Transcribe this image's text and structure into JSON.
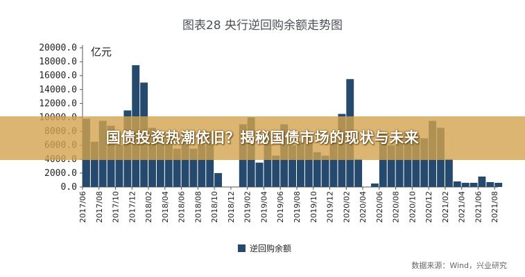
{
  "figure_title": "图表28  央行逆回购余额走势图",
  "banner_text": "国债投资热潮依旧？揭秘国债市场的现状与未来",
  "source_note": "数据来源：Wind，兴业研究",
  "colors": {
    "series": "#264a6e",
    "banner": "#d2a24e"
  },
  "chart_data": {
    "type": "bar",
    "title": "图表28  央行逆回购余额走势图",
    "ylabel": "亿元",
    "xlabel": "",
    "ylim": [
      0,
      20000
    ],
    "yticks": [
      "20000.0",
      "18000.0",
      "16000.0",
      "14000.0",
      "12000.0",
      "10000.0",
      "8000.0",
      "6000.0",
      "4000.0",
      "2000.0",
      "0.0"
    ],
    "xticks": [
      "2017/06",
      "2017/08",
      "2017/10",
      "2017/12",
      "2018/02",
      "2018/04",
      "2018/06",
      "2018/08",
      "2018/10",
      "2018/12",
      "2019/02",
      "2019/04",
      "2019/06",
      "2019/08",
      "2019/10",
      "2019/12",
      "2020/02",
      "2020/04",
      "2020/06",
      "2020/08",
      "2020/10",
      "2020/12",
      "2021/02",
      "2021/04",
      "2021/06",
      "2021/08"
    ],
    "grid": false,
    "legend_position": "bottom",
    "series": [
      {
        "name": "逆回购余额",
        "x": [
          "2017/06",
          "2017/07",
          "2017/08",
          "2017/09",
          "2017/10",
          "2017/11",
          "2017/12",
          "2018/01",
          "2018/02",
          "2018/03",
          "2018/04",
          "2018/05",
          "2018/06",
          "2018/07",
          "2018/08",
          "2018/09",
          "2018/10",
          "2018/11",
          "2018/12",
          "2019/01",
          "2019/02",
          "2019/03",
          "2019/04",
          "2019/05",
          "2019/06",
          "2019/07",
          "2019/08",
          "2019/09",
          "2019/10",
          "2019/11",
          "2019/12",
          "2020/01",
          "2020/02",
          "2020/03",
          "2020/04",
          "2020/05",
          "2020/06",
          "2020/07",
          "2020/08",
          "2020/09",
          "2020/10",
          "2020/11",
          "2020/12",
          "2021/01",
          "2021/02",
          "2021/03",
          "2021/04",
          "2021/05",
          "2021/06",
          "2021/07",
          "2021/08"
        ],
        "values": [
          9800,
          6500,
          9500,
          8800,
          6000,
          11000,
          17500,
          15000,
          8500,
          6500,
          7500,
          5500,
          8000,
          5500,
          6000,
          8000,
          2000,
          0,
          0,
          9000,
          10000,
          3500,
          8000,
          4500,
          9000,
          6000,
          6500,
          7500,
          5000,
          4500,
          6500,
          10500,
          15500,
          4000,
          0,
          500,
          8000,
          6000,
          7000,
          8000,
          7500,
          7000,
          9500,
          8500,
          4000,
          800,
          600,
          600,
          1500,
          700,
          600
        ]
      }
    ]
  }
}
